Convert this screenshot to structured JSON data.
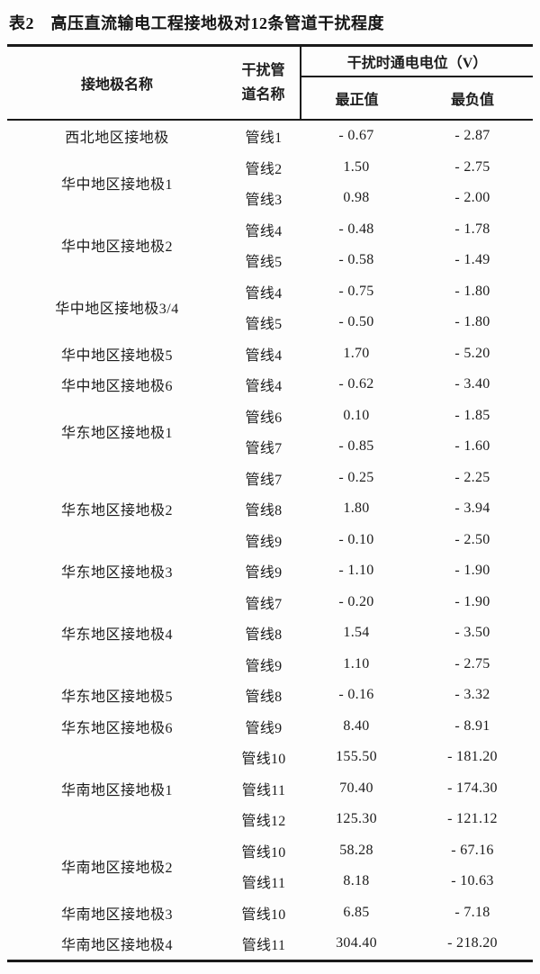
{
  "title": "表2　高压直流输电工程接地极对12条管道干扰程度",
  "table": {
    "headers": {
      "electrode": "接地极名称",
      "pipeline_line1": "干扰管",
      "pipeline_line2": "道名称",
      "potential_group": "干扰时通电电位（V）",
      "max_positive": "最正值",
      "max_negative": "最负值"
    },
    "groups": [
      {
        "electrode": "西北地区接地极",
        "rows": [
          [
            "管线1",
            "- 0.67",
            "- 2.87"
          ]
        ]
      },
      {
        "electrode": "华中地区接地极1",
        "rows": [
          [
            "管线2",
            "1.50",
            "- 2.75"
          ],
          [
            "管线3",
            "0.98",
            "- 2.00"
          ]
        ]
      },
      {
        "electrode": "华中地区接地极2",
        "rows": [
          [
            "管线4",
            "- 0.48",
            "- 1.78"
          ],
          [
            "管线5",
            "- 0.58",
            "- 1.49"
          ]
        ]
      },
      {
        "electrode": "华中地区接地极3/4",
        "rows": [
          [
            "管线4",
            "- 0.75",
            "- 1.80"
          ],
          [
            "管线5",
            "- 0.50",
            "- 1.80"
          ]
        ]
      },
      {
        "electrode": "华中地区接地极5",
        "rows": [
          [
            "管线4",
            "1.70",
            "- 5.20"
          ]
        ]
      },
      {
        "electrode": "华中地区接地极6",
        "rows": [
          [
            "管线4",
            "- 0.62",
            "- 3.40"
          ]
        ]
      },
      {
        "electrode": "华东地区接地极1",
        "rows": [
          [
            "管线6",
            "0.10",
            "- 1.85"
          ],
          [
            "管线7",
            "- 0.85",
            "- 1.60"
          ]
        ]
      },
      {
        "electrode": "华东地区接地极2",
        "rows": [
          [
            "管线7",
            "- 0.25",
            "- 2.25"
          ],
          [
            "管线8",
            "1.80",
            "- 3.94"
          ],
          [
            "管线9",
            "- 0.10",
            "- 2.50"
          ]
        ]
      },
      {
        "electrode": "华东地区接地极3",
        "rows": [
          [
            "管线9",
            "- 1.10",
            "- 1.90"
          ]
        ]
      },
      {
        "electrode": "华东地区接地极4",
        "rows": [
          [
            "管线7",
            "- 0.20",
            "- 1.90"
          ],
          [
            "管线8",
            "1.54",
            "- 3.50"
          ],
          [
            "管线9",
            "1.10",
            "- 2.75"
          ]
        ]
      },
      {
        "electrode": "华东地区接地极5",
        "rows": [
          [
            "管线8",
            "- 0.16",
            "- 3.32"
          ]
        ]
      },
      {
        "electrode": "华东地区接地极6",
        "rows": [
          [
            "管线9",
            "8.40",
            "- 8.91"
          ]
        ]
      },
      {
        "electrode": "华南地区接地极1",
        "rows": [
          [
            "管线10",
            "155.50",
            "- 181.20"
          ],
          [
            "管线11",
            "70.40",
            "- 174.30"
          ],
          [
            "管线12",
            "125.30",
            "- 121.12"
          ]
        ]
      },
      {
        "electrode": "华南地区接地极2",
        "rows": [
          [
            "管线10",
            "58.28",
            "- 67.16"
          ],
          [
            "管线11",
            "8.18",
            "- 10.63"
          ]
        ]
      },
      {
        "electrode": "华南地区接地极3",
        "rows": [
          [
            "管线10",
            "6.85",
            "- 7.18"
          ]
        ]
      },
      {
        "electrode": "华南地区接地极4",
        "rows": [
          [
            "管线11",
            "304.40",
            "- 218.20"
          ]
        ]
      }
    ]
  },
  "colors": {
    "text": "#1c1c1c",
    "rule": "#1a1a1a",
    "background": "#fdfdfd"
  }
}
